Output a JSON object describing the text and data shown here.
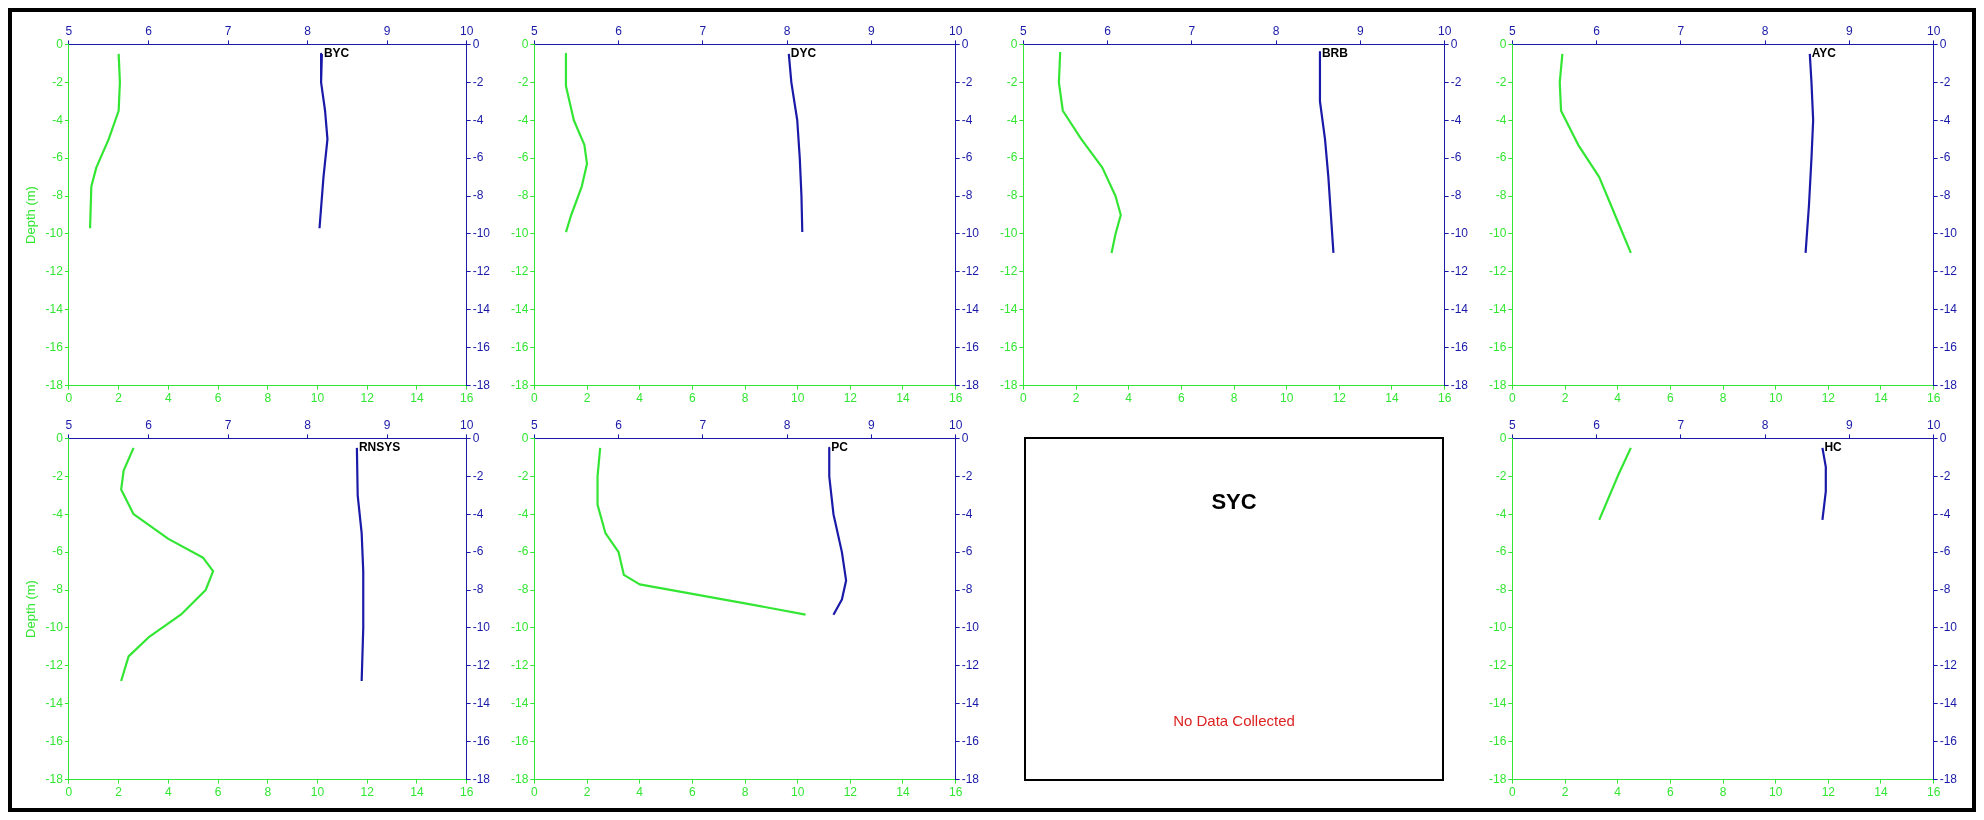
{
  "chart_data": [
    {
      "type": "line",
      "title": "BYC",
      "ylabel": "Depth (m)",
      "xlim": [
        0,
        16
      ],
      "xticks": [
        0,
        2,
        4,
        6,
        8,
        10,
        12,
        14,
        16
      ],
      "x2lim": [
        5,
        10
      ],
      "x2ticks": [
        5,
        6,
        7,
        8,
        9,
        10
      ],
      "ylim": [
        -18,
        0
      ],
      "yticks": [
        0,
        -2,
        -4,
        -6,
        -8,
        -10,
        -12,
        -14,
        -16,
        -18
      ],
      "y2lim": [
        -18,
        0
      ],
      "y2ticks": [
        0,
        -2,
        -4,
        -6,
        -8,
        -10,
        -12,
        -14,
        -16,
        -18
      ],
      "series": [
        {
          "color": "#33e633",
          "x": [
            2.0,
            2.05,
            2.0,
            1.6,
            1.1,
            0.9,
            0.85
          ],
          "values": [
            -0.5,
            -2,
            -3.5,
            -5,
            -6.5,
            -7.5,
            -9.7
          ]
        },
        {
          "color": "#1a1aa8",
          "axis": "x2",
          "x": [
            8.18,
            8.17,
            8.22,
            8.25,
            8.2,
            8.15
          ],
          "values": [
            -0.5,
            -2,
            -3.5,
            -5,
            -7,
            -9.7
          ]
        }
      ]
    },
    {
      "type": "line",
      "title": "DYC",
      "xlim": [
        0,
        16
      ],
      "xticks": [
        0,
        2,
        4,
        6,
        8,
        10,
        12,
        14,
        16
      ],
      "x2lim": [
        5,
        10
      ],
      "x2ticks": [
        5,
        6,
        7,
        8,
        9,
        10
      ],
      "ylim": [
        -18,
        0
      ],
      "yticks": [
        0,
        -2,
        -4,
        -6,
        -8,
        -10,
        -12,
        -14,
        -16,
        -18
      ],
      "y2lim": [
        -18,
        0
      ],
      "y2ticks": [
        0,
        -2,
        -4,
        -6,
        -8,
        -10,
        -12,
        -14,
        -16,
        -18
      ],
      "series": [
        {
          "color": "#33e633",
          "x": [
            1.2,
            1.2,
            1.5,
            1.9,
            2.0,
            1.8,
            1.4,
            1.2
          ],
          "values": [
            -0.5,
            -2.2,
            -4,
            -5.3,
            -6.3,
            -7.5,
            -9,
            -9.9
          ]
        },
        {
          "color": "#1a1aa8",
          "axis": "x2",
          "x": [
            8.02,
            8.05,
            8.12,
            8.15,
            8.17,
            8.18
          ],
          "values": [
            -0.5,
            -2,
            -4,
            -6,
            -8,
            -9.9
          ]
        }
      ]
    },
    {
      "type": "line",
      "title": "BRB",
      "xlim": [
        0,
        16
      ],
      "xticks": [
        0,
        2,
        4,
        6,
        8,
        10,
        12,
        14,
        16
      ],
      "x2lim": [
        5,
        10
      ],
      "x2ticks": [
        5,
        6,
        7,
        8,
        9,
        10
      ],
      "ylim": [
        -18,
        0
      ],
      "yticks": [
        0,
        -2,
        -4,
        -6,
        -8,
        -10,
        -12,
        -14,
        -16,
        -18
      ],
      "y2lim": [
        -18,
        0
      ],
      "y2ticks": [
        0,
        -2,
        -4,
        -6,
        -8,
        -10,
        -12,
        -14,
        -16,
        -18
      ],
      "series": [
        {
          "color": "#33e633",
          "x": [
            1.4,
            1.35,
            1.5,
            2.2,
            3.0,
            3.5,
            3.7,
            3.5,
            3.35
          ],
          "values": [
            -0.4,
            -2,
            -3.5,
            -5,
            -6.5,
            -8,
            -9,
            -10,
            -11
          ]
        },
        {
          "color": "#1a1aa8",
          "axis": "x2",
          "x": [
            8.52,
            8.52,
            8.58,
            8.62,
            8.65,
            8.68
          ],
          "values": [
            -0.4,
            -3,
            -5,
            -7,
            -9,
            -11
          ]
        }
      ]
    },
    {
      "type": "line",
      "title": "AYC",
      "xlim": [
        0,
        16
      ],
      "xticks": [
        0,
        2,
        4,
        6,
        8,
        10,
        12,
        14,
        16
      ],
      "x2lim": [
        5,
        10
      ],
      "x2ticks": [
        5,
        6,
        7,
        8,
        9,
        10
      ],
      "ylim": [
        -18,
        0
      ],
      "yticks": [
        0,
        -2,
        -4,
        -6,
        -8,
        -10,
        -12,
        -14,
        -16,
        -18
      ],
      "y2lim": [
        -18,
        0
      ],
      "y2ticks": [
        0,
        -2,
        -4,
        -6,
        -8,
        -10,
        -12,
        -14,
        -16,
        -18
      ],
      "series": [
        {
          "color": "#33e633",
          "x": [
            1.9,
            1.8,
            1.85,
            2.5,
            3.3,
            3.9,
            4.5
          ],
          "values": [
            -0.5,
            -2,
            -3.5,
            -5.3,
            -7,
            -9,
            -11
          ]
        },
        {
          "color": "#1a1aa8",
          "axis": "x2",
          "x": [
            8.53,
            8.55,
            8.57,
            8.55,
            8.52,
            8.48
          ],
          "values": [
            -0.5,
            -2,
            -4,
            -6,
            -8.5,
            -11
          ]
        }
      ]
    },
    {
      "type": "line",
      "title": "RNSYS",
      "ylabel": "Depth (m)",
      "xlim": [
        0,
        16
      ],
      "xticks": [
        0,
        2,
        4,
        6,
        8,
        10,
        12,
        14,
        16
      ],
      "x2lim": [
        5,
        10
      ],
      "x2ticks": [
        5,
        6,
        7,
        8,
        9,
        10
      ],
      "ylim": [
        -18,
        0
      ],
      "yticks": [
        0,
        -2,
        -4,
        -6,
        -8,
        -10,
        -12,
        -14,
        -16,
        -18
      ],
      "y2lim": [
        -18,
        0
      ],
      "y2ticks": [
        0,
        -2,
        -4,
        -6,
        -8,
        -10,
        -12,
        -14,
        -16,
        -18
      ],
      "series": [
        {
          "color": "#33e633",
          "x": [
            2.6,
            2.2,
            2.1,
            2.6,
            4.0,
            5.4,
            5.8,
            5.5,
            4.5,
            3.2,
            2.4,
            2.1
          ],
          "values": [
            -0.5,
            -1.7,
            -2.7,
            -4,
            -5.3,
            -6.3,
            -7,
            -8,
            -9.3,
            -10.5,
            -11.5,
            -12.8
          ]
        },
        {
          "color": "#1a1aa8",
          "axis": "x2",
          "x": [
            8.62,
            8.63,
            8.68,
            8.7,
            8.7,
            8.68
          ],
          "values": [
            -0.5,
            -3,
            -5,
            -7,
            -10,
            -12.8
          ]
        }
      ]
    },
    {
      "type": "line",
      "title": "PC",
      "xlim": [
        0,
        16
      ],
      "xticks": [
        0,
        2,
        4,
        6,
        8,
        10,
        12,
        14,
        16
      ],
      "x2lim": [
        5,
        10
      ],
      "x2ticks": [
        5,
        6,
        7,
        8,
        9,
        10
      ],
      "ylim": [
        -18,
        0
      ],
      "yticks": [
        0,
        -2,
        -4,
        -6,
        -8,
        -10,
        -12,
        -14,
        -16,
        -18
      ],
      "y2lim": [
        -18,
        0
      ],
      "y2ticks": [
        0,
        -2,
        -4,
        -6,
        -8,
        -10,
        -12,
        -14,
        -16,
        -18
      ],
      "series": [
        {
          "color": "#33e633",
          "x": [
            2.5,
            2.4,
            2.4,
            2.7,
            3.2,
            3.4,
            4.0,
            6.0,
            8.0,
            10.3
          ],
          "values": [
            -0.5,
            -2,
            -3.5,
            -5,
            -6,
            -7.2,
            -7.7,
            -8.2,
            -8.7,
            -9.3
          ]
        },
        {
          "color": "#1a1aa8",
          "axis": "x2",
          "x": [
            8.5,
            8.5,
            8.55,
            8.65,
            8.7,
            8.65,
            8.55
          ],
          "values": [
            -0.5,
            -2,
            -4,
            -6,
            -7.5,
            -8.5,
            -9.3
          ]
        }
      ]
    },
    {
      "type": "other",
      "title": "SYC",
      "annotations": [
        "No Data Collected"
      ]
    },
    {
      "type": "line",
      "title": "HC",
      "xlim": [
        0,
        16
      ],
      "xticks": [
        0,
        2,
        4,
        6,
        8,
        10,
        12,
        14,
        16
      ],
      "x2lim": [
        5,
        10
      ],
      "x2ticks": [
        5,
        6,
        7,
        8,
        9,
        10
      ],
      "ylim": [
        -18,
        0
      ],
      "yticks": [
        0,
        -2,
        -4,
        -6,
        -8,
        -10,
        -12,
        -14,
        -16,
        -18
      ],
      "y2lim": [
        -18,
        0
      ],
      "y2ticks": [
        0,
        -2,
        -4,
        -6,
        -8,
        -10,
        -12,
        -14,
        -16,
        -18
      ],
      "series": [
        {
          "color": "#33e633",
          "x": [
            4.5,
            4.0,
            3.3
          ],
          "values": [
            -0.5,
            -2,
            -4.3
          ]
        },
        {
          "color": "#1a1aa8",
          "axis": "x2",
          "x": [
            8.68,
            8.72,
            8.72,
            8.68
          ],
          "values": [
            -0.5,
            -1.5,
            -2.8,
            -4.3
          ]
        }
      ]
    }
  ]
}
